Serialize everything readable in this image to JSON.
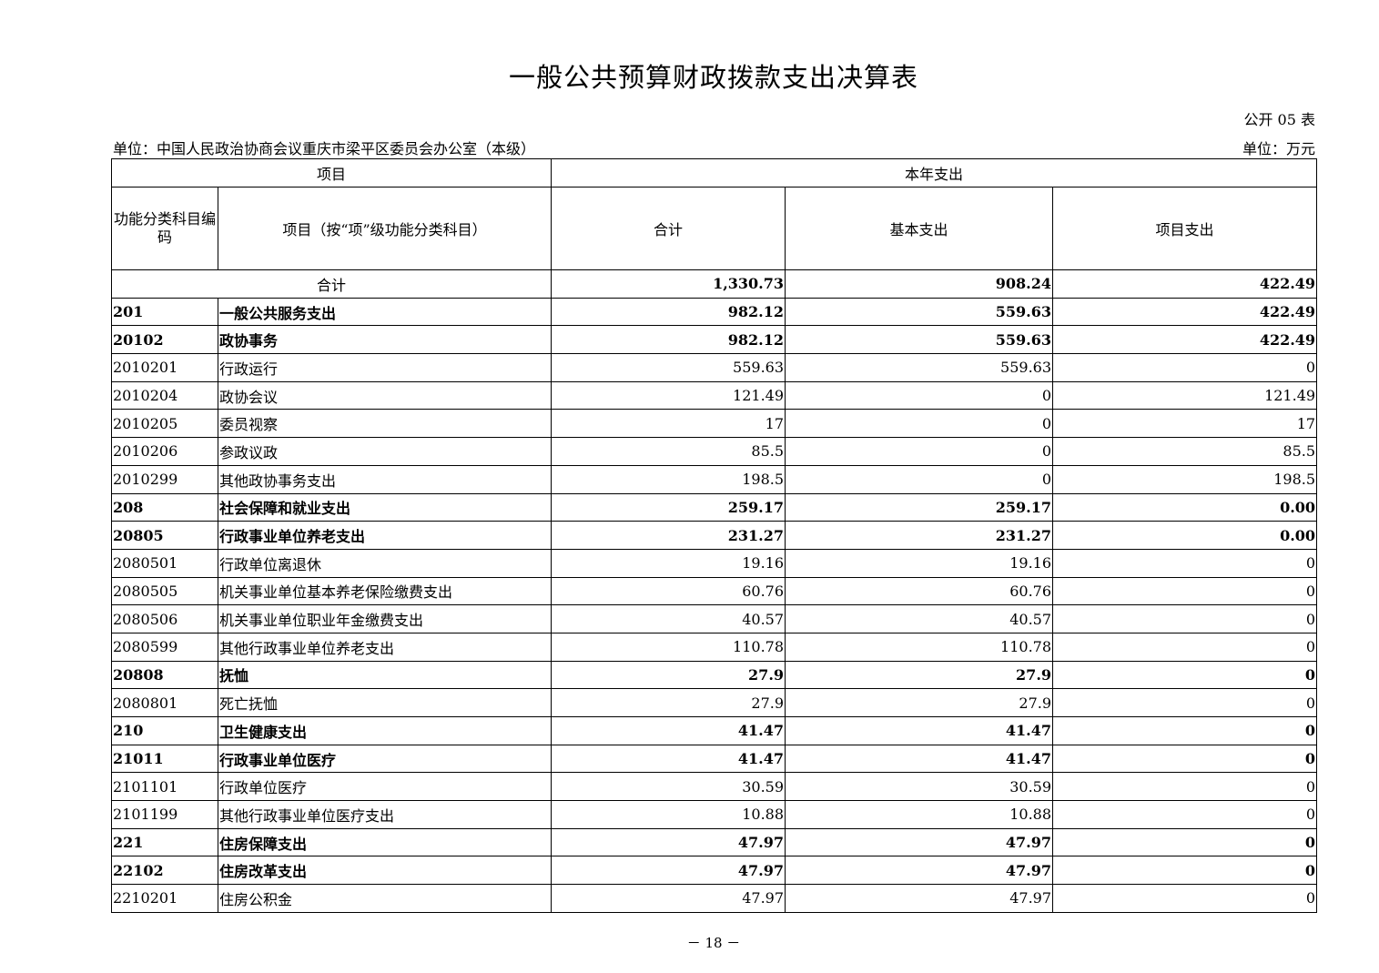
{
  "title": "一般公共预算财政拨款支出决算表",
  "form_no": "公开 05 表",
  "unit_org": "单位：中国人民政治协商会议重庆市梁平区委员会办公室（本级）",
  "unit_currency": "单位：万元",
  "headers": {
    "item": "项目",
    "current_year": "本年支出",
    "code": "功能分类科目编码",
    "name": "项目（按“项”级功能分类科目）",
    "total": "合计",
    "basic": "基本支出",
    "project": "项目支出"
  },
  "total_row": {
    "label": "合计",
    "total": "1,330.73",
    "basic": "908.24",
    "project": "422.49"
  },
  "rows": [
    {
      "code": "201",
      "name": "一般公共服务支出",
      "total": "982.12",
      "basic": "559.63",
      "project": "422.49",
      "bold": true
    },
    {
      "code": "20102",
      "name": "政协事务",
      "total": "982.12",
      "basic": "559.63",
      "project": "422.49",
      "bold": true
    },
    {
      "code": "2010201",
      "name": "行政运行",
      "total": "559.63",
      "basic": "559.63",
      "project": "0"
    },
    {
      "code": "2010204",
      "name": "政协会议",
      "total": "121.49",
      "basic": "0",
      "project": "121.49"
    },
    {
      "code": "2010205",
      "name": "委员视察",
      "total": "17",
      "basic": "0",
      "project": "17"
    },
    {
      "code": "2010206",
      "name": "参政议政",
      "total": "85.5",
      "basic": "0",
      "project": "85.5"
    },
    {
      "code": "2010299",
      "name": "其他政协事务支出",
      "total": "198.5",
      "basic": "0",
      "project": "198.5"
    },
    {
      "code": "208",
      "name": "社会保障和就业支出",
      "total": "259.17",
      "basic": "259.17",
      "project": "0.00",
      "bold": true
    },
    {
      "code": "20805",
      "name": "行政事业单位养老支出",
      "total": "231.27",
      "basic": "231.27",
      "project": "0.00",
      "bold": true
    },
    {
      "code": "2080501",
      "name": "行政单位离退休",
      "total": "19.16",
      "basic": "19.16",
      "project": "0"
    },
    {
      "code": "2080505",
      "name": "机关事业单位基本养老保险缴费支出",
      "total": "60.76",
      "basic": "60.76",
      "project": "0"
    },
    {
      "code": "2080506",
      "name": "机关事业单位职业年金缴费支出",
      "total": "40.57",
      "basic": "40.57",
      "project": "0"
    },
    {
      "code": "2080599",
      "name": "其他行政事业单位养老支出",
      "total": "110.78",
      "basic": "110.78",
      "project": "0"
    },
    {
      "code": "20808",
      "name": "抚恤",
      "total": "27.9",
      "basic": "27.9",
      "project": "0",
      "bold": true
    },
    {
      "code": "2080801",
      "name": "死亡抚恤",
      "total": "27.9",
      "basic": "27.9",
      "project": "0"
    },
    {
      "code": "210",
      "name": "卫生健康支出",
      "total": "41.47",
      "basic": "41.47",
      "project": "0",
      "bold": true
    },
    {
      "code": "21011",
      "name": "行政事业单位医疗",
      "total": "41.47",
      "basic": "41.47",
      "project": "0",
      "bold": true
    },
    {
      "code": "2101101",
      "name": "行政单位医疗",
      "total": "30.59",
      "basic": "30.59",
      "project": "0"
    },
    {
      "code": "2101199",
      "name": "其他行政事业单位医疗支出",
      "total": "10.88",
      "basic": "10.88",
      "project": "0"
    },
    {
      "code": "221",
      "name": "住房保障支出",
      "total": "47.97",
      "basic": "47.97",
      "project": "0",
      "bold": true
    },
    {
      "code": "22102",
      "name": "住房改革支出",
      "total": "47.97",
      "basic": "47.97",
      "project": "0",
      "bold": true
    },
    {
      "code": "2210201",
      "name": "住房公积金",
      "total": "47.97",
      "basic": "47.97",
      "project": "0"
    }
  ],
  "page_number": "－ 18 －"
}
